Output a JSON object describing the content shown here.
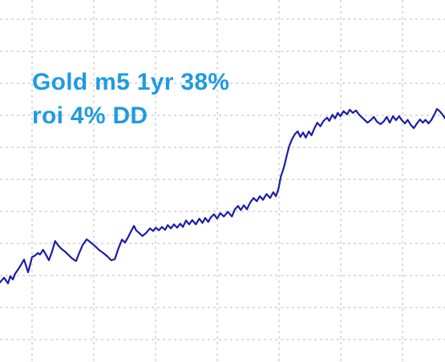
{
  "chart_data": {
    "type": "line",
    "title": "",
    "xlabel": "",
    "ylabel": "",
    "grid": true,
    "annotation": [
      "Gold m5 1yr 38%",
      "roi 4% DD"
    ],
    "colors": {
      "line": "#1c1ca8",
      "grid": "#b8b8b8",
      "annotation": "#1e9be0",
      "background": "#ffffff"
    },
    "xlim": [
      0,
      100
    ],
    "ylim": [
      0,
      100
    ],
    "series": [
      {
        "x": [
          0.0,
          0.9,
          1.8,
          2.3,
          2.9,
          3.4,
          4.3,
          5.4,
          6.3,
          6.8,
          7.2,
          7.9,
          8.5,
          9.0,
          9.7,
          10.3,
          11.0,
          11.7,
          12.4,
          13.0,
          13.7,
          14.6,
          15.3,
          16.2,
          17.1,
          17.8,
          18.6,
          19.5,
          20.4,
          21.3,
          22.2,
          23.2,
          24.1,
          25.0,
          25.8,
          26.5,
          27.4,
          28.1,
          28.8,
          29.4,
          30.1,
          30.6,
          31.3,
          32.0,
          32.8,
          33.7,
          34.4,
          35.0,
          35.7,
          36.4,
          37.1,
          37.7,
          38.4,
          39.1,
          39.8,
          40.5,
          41.1,
          41.8,
          42.5,
          43.2,
          44.0,
          44.8,
          45.5,
          46.1,
          46.8,
          47.4,
          48.1,
          48.8,
          49.5,
          50.3,
          51.2,
          52.1,
          52.8,
          53.5,
          54.1,
          54.8,
          55.5,
          56.2,
          57.0,
          57.7,
          58.4,
          59.1,
          59.9,
          60.7,
          61.4,
          62.0,
          62.6,
          63.1,
          63.6,
          64.0,
          64.5,
          65.0,
          65.6,
          66.3,
          66.9,
          67.5,
          68.1,
          68.7,
          69.4,
          70.0,
          70.6,
          71.3,
          72.0,
          72.7,
          73.5,
          74.0,
          74.7,
          75.3,
          75.9,
          76.5,
          77.2,
          78.0,
          78.6,
          79.3,
          80.0,
          80.7,
          81.4,
          82.0,
          82.6,
          83.3,
          84.0,
          84.7,
          85.5,
          86.2,
          86.9,
          87.6,
          88.3,
          89.0,
          89.7,
          90.3,
          91.0,
          91.6,
          92.3,
          93.0,
          93.7,
          94.4,
          95.0,
          95.6,
          96.3,
          96.9,
          97.5,
          98.2,
          98.8,
          99.4,
          100.0
        ],
        "y": [
          22.0,
          23.3,
          21.7,
          23.7,
          22.8,
          24.4,
          26.0,
          28.3,
          24.8,
          27.0,
          29.0,
          29.4,
          30.1,
          29.7,
          31.0,
          29.7,
          28.1,
          30.5,
          33.4,
          32.3,
          31.4,
          30.5,
          29.7,
          28.6,
          27.9,
          30.1,
          32.4,
          33.9,
          33.0,
          32.1,
          31.0,
          30.1,
          29.2,
          28.1,
          28.4,
          31.0,
          33.8,
          33.0,
          34.5,
          36.0,
          37.6,
          36.4,
          35.6,
          34.8,
          35.6,
          36.9,
          36.2,
          37.1,
          36.4,
          37.3,
          36.5,
          37.8,
          36.9,
          38.0,
          37.1,
          38.2,
          37.3,
          39.1,
          38.0,
          39.2,
          38.0,
          39.6,
          38.4,
          39.8,
          38.7,
          40.0,
          40.8,
          39.6,
          41.1,
          40.2,
          41.5,
          40.2,
          42.2,
          43.1,
          42.0,
          43.3,
          42.2,
          44.0,
          45.3,
          44.4,
          45.8,
          44.8,
          46.4,
          45.3,
          46.9,
          45.8,
          47.9,
          51.2,
          53.0,
          54.7,
          57.4,
          59.7,
          61.5,
          63.0,
          63.7,
          62.2,
          63.4,
          62.0,
          63.7,
          62.6,
          64.4,
          66.1,
          65.1,
          66.6,
          67.5,
          66.6,
          68.3,
          67.3,
          68.8,
          67.9,
          69.3,
          68.4,
          69.7,
          68.8,
          69.5,
          68.3,
          67.5,
          66.8,
          66.1,
          66.8,
          67.7,
          66.4,
          65.7,
          66.4,
          67.7,
          66.1,
          67.9,
          66.8,
          67.9,
          66.8,
          65.9,
          66.9,
          65.5,
          64.6,
          65.9,
          67.0,
          66.1,
          66.9,
          65.9,
          66.8,
          68.1,
          69.9,
          69.3,
          68.4,
          67.3
        ]
      }
    ]
  }
}
